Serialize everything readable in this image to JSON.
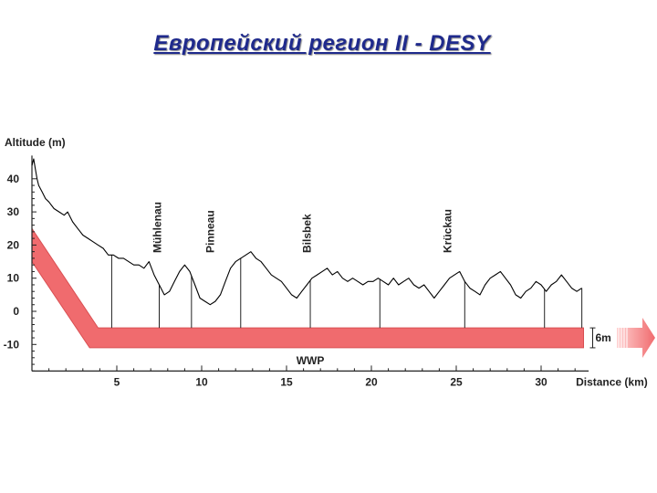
{
  "slide": {
    "title": "Европейский регион II  - DESY"
  },
  "chart_data": {
    "type": "line",
    "ylabel": "Altitude (m)",
    "xlabel": "Distance (km)",
    "xlim": [
      0,
      32.5
    ],
    "ylim": [
      -18,
      47
    ],
    "x_ticks": [
      5,
      10,
      15,
      20,
      25,
      30
    ],
    "y_ticks": [
      40,
      30,
      20,
      10,
      0,
      -10
    ],
    "grid": false,
    "series": [
      {
        "x": [
          0,
          0.1,
          0.2,
          0.3,
          0.4,
          0.6,
          0.8,
          1.0,
          1.3,
          1.6,
          1.9,
          2.1,
          2.4,
          2.7,
          3.0,
          3.3,
          3.6,
          3.9,
          4.2,
          4.5,
          4.8,
          5.1,
          5.4,
          5.7,
          6.0,
          6.3,
          6.6,
          6.9,
          7.2,
          7.5,
          7.8,
          8.1,
          8.4,
          8.7,
          9.0,
          9.3,
          9.6,
          9.9,
          10.2,
          10.5,
          10.8,
          11.1,
          11.4,
          11.7,
          12.0,
          12.3,
          12.6,
          12.9,
          13.2,
          13.5,
          13.8,
          14.1,
          14.4,
          14.7,
          15.0,
          15.3,
          15.6,
          15.9,
          16.2,
          16.5,
          16.8,
          17.1,
          17.4,
          17.7,
          18.0,
          18.3,
          18.6,
          18.9,
          19.2,
          19.5,
          19.8,
          20.1,
          20.4,
          20.7,
          21.0,
          21.3,
          21.6,
          21.9,
          22.2,
          22.5,
          22.8,
          23.1,
          23.4,
          23.7,
          24.0,
          24.3,
          24.6,
          24.9,
          25.2,
          25.5,
          25.8,
          26.1,
          26.4,
          26.7,
          27.0,
          27.3,
          27.6,
          27.9,
          28.2,
          28.5,
          28.8,
          29.1,
          29.4,
          29.7,
          30.0,
          30.3,
          30.6,
          30.9,
          31.2,
          31.5,
          31.8,
          32.1,
          32.4
        ],
        "y": [
          44,
          46,
          43,
          40,
          38,
          36,
          34,
          33,
          31,
          30,
          29,
          30,
          27,
          25,
          23,
          22,
          21,
          20,
          19,
          17,
          17,
          16,
          16,
          15,
          14,
          14,
          13,
          15,
          11,
          8,
          5,
          6,
          9,
          12,
          14,
          12,
          8,
          4,
          3,
          2,
          3,
          5,
          9,
          13,
          15,
          16,
          17,
          18,
          16,
          15,
          13,
          11,
          10,
          9,
          7,
          5,
          4,
          6,
          8,
          10,
          11,
          12,
          13,
          11,
          12,
          10,
          9,
          10,
          9,
          8,
          9,
          9,
          10,
          9,
          8,
          10,
          8,
          9,
          10,
          8,
          7,
          8,
          6,
          4,
          6,
          8,
          10,
          11,
          12,
          9,
          7,
          6,
          5,
          8,
          10,
          11,
          12,
          10,
          8,
          5,
          4,
          6,
          7,
          9,
          8,
          6,
          8,
          9,
          11,
          9,
          7,
          6,
          7
        ],
        "color": "#000000"
      }
    ],
    "rivers": [
      {
        "name": "Mühlenau",
        "x": 7.4
      },
      {
        "name": "Pinneau",
        "x": 10.5
      },
      {
        "name": "Bilsbek",
        "x": 16.2
      },
      {
        "name": "Krückau",
        "x": 24.5
      }
    ],
    "wells_x": [
      4.7,
      7.5,
      9.4,
      12.3,
      16.4,
      20.5,
      25.5,
      30.2,
      32.4
    ],
    "tunnel": {
      "label": "WWP",
      "top": -5,
      "bottom": -11,
      "depth_label": "6m",
      "color": "#f06b6e"
    }
  }
}
